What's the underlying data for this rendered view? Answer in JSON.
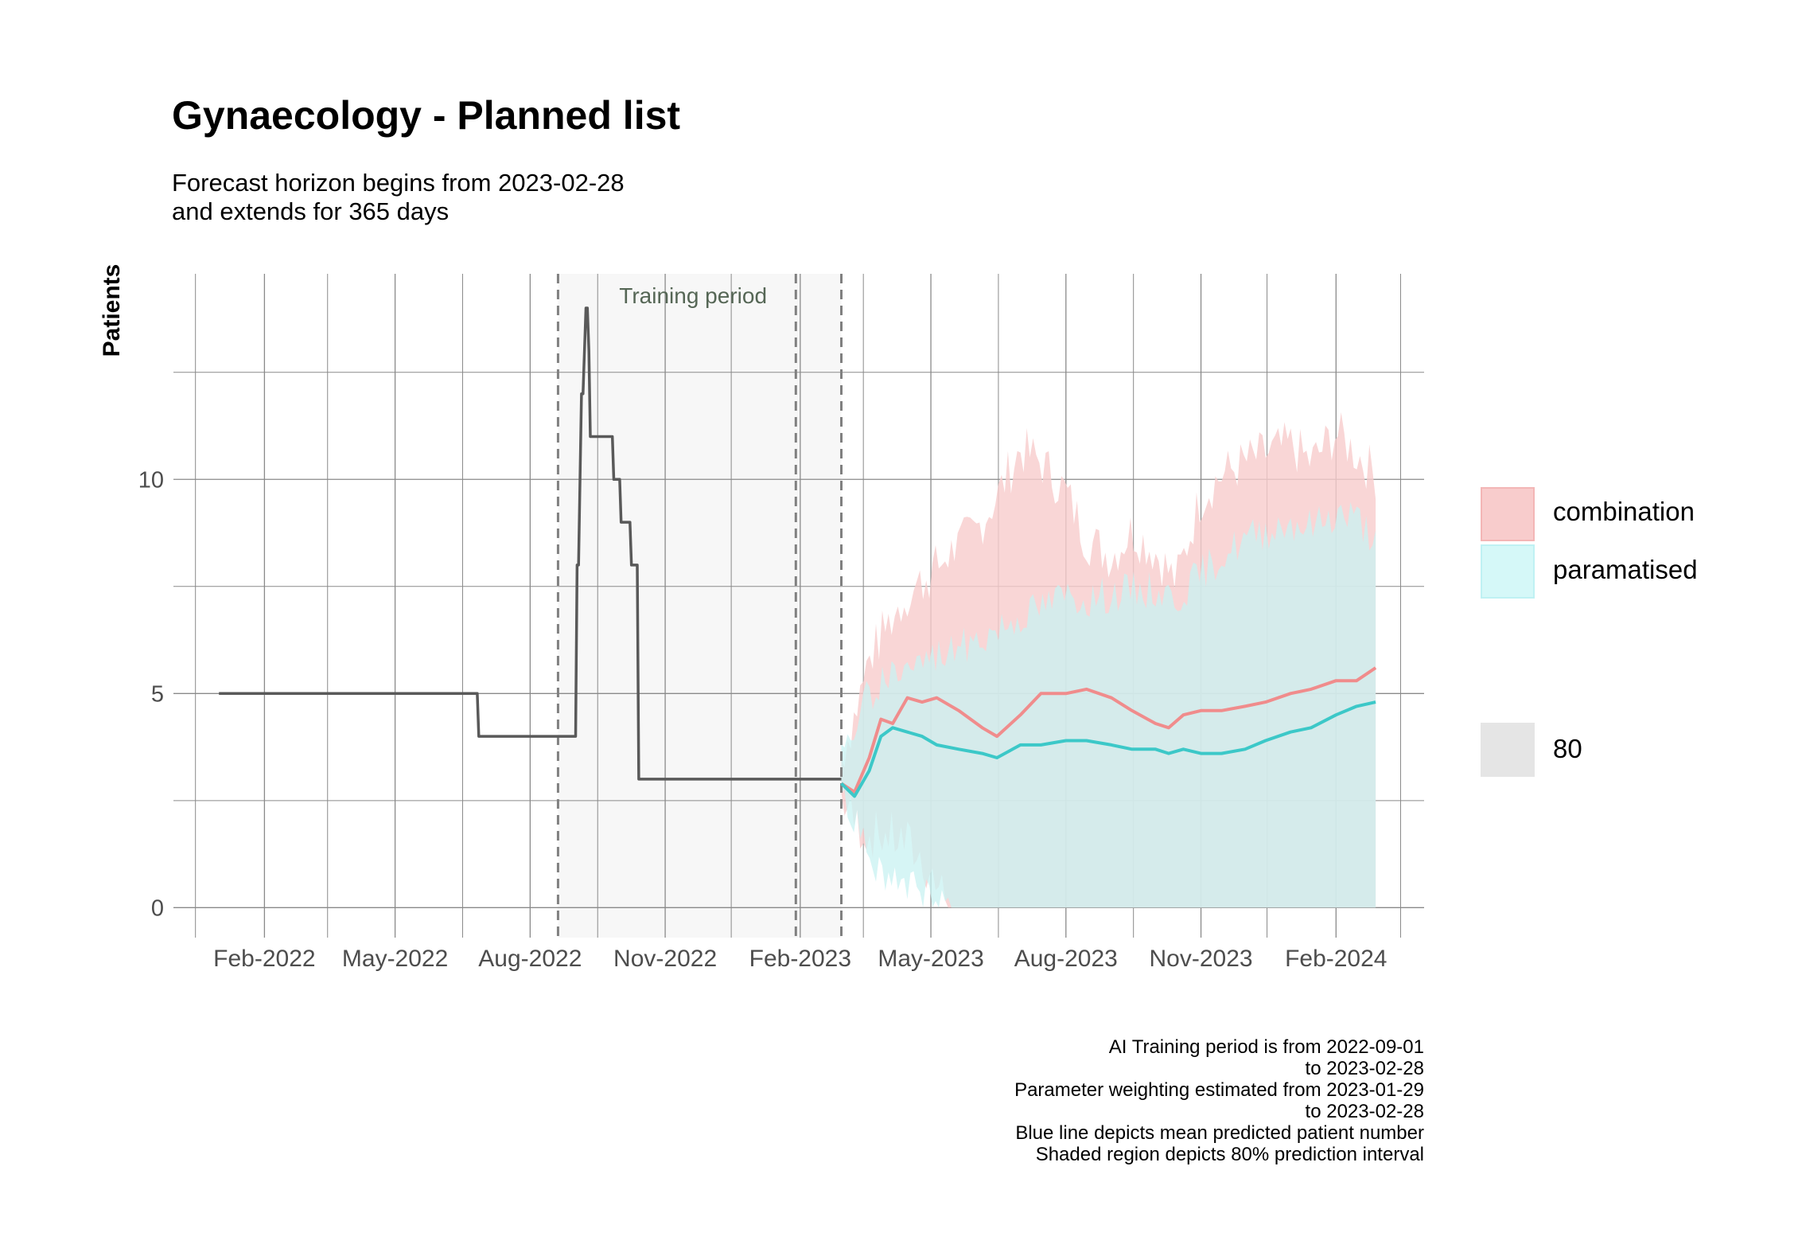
{
  "page": {
    "title": "Gynaecology - Planned list",
    "subtitle_lines": [
      "Forecast horizon begins from 2023-02-28",
      "and extends for 365 days"
    ],
    "caption_lines": [
      "AI Training period is from 2022-09-01",
      "to 2023-02-28",
      "Parameter weighting estimated from 2023-01-29",
      "to 2023-02-28",
      "Blue line depicts mean predicted patient number",
      "Shaded region depicts 80% prediction interval"
    ]
  },
  "chart_data": {
    "type": "line",
    "title": "Gynaecology - Planned list",
    "ylabel": "Patients",
    "xlabel": "",
    "xlim": [
      "2021-12-01",
      "2024-04-01"
    ],
    "ylim": [
      -0.7,
      14.8
    ],
    "y_ticks": [
      0,
      5,
      10
    ],
    "x_ticks": [
      "2022-02-01",
      "2022-05-01",
      "2022-08-01",
      "2022-11-01",
      "2023-02-01",
      "2023-05-01",
      "2023-08-01",
      "2023-11-01",
      "2024-02-01"
    ],
    "x_tick_labels": [
      "Feb-2022",
      "May-2022",
      "Aug-2022",
      "Nov-2022",
      "Feb-2023",
      "May-2023",
      "Aug-2023",
      "Nov-2023",
      "Feb-2024"
    ],
    "grid": true,
    "legend_position": "right",
    "annotation": {
      "text": "Training period",
      "x": "2022-11-20"
    },
    "training_region": {
      "start": "2022-08-20",
      "end": "2023-03-01"
    },
    "vlines": [
      "2022-08-20",
      "2023-01-29",
      "2023-03-01"
    ],
    "colors": {
      "observed": "#595959",
      "combination": "#f08c8c",
      "paramatised": "#3cc8c8",
      "combination_band": "#f8cccc",
      "paramatised_band": "#c8f2f2",
      "training_shade": "#f7f7f7",
      "level_key": "#e5e5e5"
    },
    "observed": {
      "x": [
        "2022-01-01",
        "2022-06-26",
        "2022-06-27",
        "2022-09-01",
        "2022-09-02",
        "2022-09-03",
        "2022-09-05",
        "2022-09-06",
        "2022-09-08",
        "2022-09-09",
        "2022-09-10",
        "2022-09-11",
        "2022-09-13",
        "2022-09-14",
        "2022-09-26",
        "2022-09-27",
        "2022-10-01",
        "2022-10-02",
        "2022-10-08",
        "2022-10-09",
        "2022-10-13",
        "2022-10-14",
        "2023-03-01"
      ],
      "y": [
        5,
        5,
        4,
        4,
        8,
        8,
        12,
        12,
        14,
        14,
        13,
        11,
        11,
        11,
        11,
        10,
        10,
        9,
        9,
        8,
        8,
        3,
        3
      ]
    },
    "series": [
      {
        "name": "combination",
        "x": [
          "2023-03-01",
          "2023-03-10",
          "2023-03-20",
          "2023-03-28",
          "2023-04-05",
          "2023-04-15",
          "2023-04-25",
          "2023-05-05",
          "2023-05-20",
          "2023-06-05",
          "2023-06-15",
          "2023-07-01",
          "2023-07-15",
          "2023-08-01",
          "2023-08-15",
          "2023-09-01",
          "2023-09-15",
          "2023-10-01",
          "2023-10-10",
          "2023-10-20",
          "2023-11-01",
          "2023-11-15",
          "2023-12-01",
          "2023-12-15",
          "2024-01-01",
          "2024-01-15",
          "2024-02-01",
          "2024-02-15",
          "2024-02-28"
        ],
        "y": [
          2.9,
          2.7,
          3.5,
          4.4,
          4.3,
          4.9,
          4.8,
          4.9,
          4.6,
          4.2,
          4.0,
          4.5,
          5.0,
          5.0,
          5.1,
          4.9,
          4.6,
          4.3,
          4.2,
          4.5,
          4.6,
          4.6,
          4.7,
          4.8,
          5.0,
          5.1,
          5.3,
          5.3,
          5.6
        ]
      },
      {
        "name": "paramatised",
        "x": [
          "2023-03-01",
          "2023-03-10",
          "2023-03-20",
          "2023-03-28",
          "2023-04-05",
          "2023-04-15",
          "2023-04-25",
          "2023-05-05",
          "2023-05-20",
          "2023-06-05",
          "2023-06-15",
          "2023-07-01",
          "2023-07-15",
          "2023-08-01",
          "2023-08-15",
          "2023-09-01",
          "2023-09-15",
          "2023-10-01",
          "2023-10-10",
          "2023-10-20",
          "2023-11-01",
          "2023-11-15",
          "2023-12-01",
          "2023-12-15",
          "2024-01-01",
          "2024-01-15",
          "2024-02-01",
          "2024-02-15",
          "2024-02-28"
        ],
        "y": [
          2.9,
          2.6,
          3.2,
          4.0,
          4.2,
          4.1,
          4.0,
          3.8,
          3.7,
          3.6,
          3.5,
          3.8,
          3.8,
          3.9,
          3.9,
          3.8,
          3.7,
          3.7,
          3.6,
          3.7,
          3.6,
          3.6,
          3.7,
          3.9,
          4.1,
          4.2,
          4.5,
          4.7,
          4.8
        ]
      }
    ],
    "bands": [
      {
        "name": "combination",
        "level": "80",
        "x": [
          "2023-03-01",
          "2023-03-10",
          "2023-03-20",
          "2023-04-01",
          "2023-04-15",
          "2023-05-01",
          "2023-05-15",
          "2023-06-01",
          "2023-06-15",
          "2023-07-01",
          "2023-07-15",
          "2023-08-01",
          "2023-08-15",
          "2023-09-01",
          "2023-09-15",
          "2023-10-01",
          "2023-10-15",
          "2023-11-01",
          "2023-11-15",
          "2023-12-01",
          "2023-12-15",
          "2024-01-01",
          "2024-01-15",
          "2024-02-01",
          "2024-02-15",
          "2024-02-28"
        ],
        "lower": [
          2.6,
          2.0,
          1.7,
          1.7,
          1.5,
          0.8,
          0.0,
          0.0,
          0.0,
          0.0,
          0.0,
          0.0,
          0.0,
          0.0,
          0.0,
          0.0,
          0.0,
          0.0,
          0.0,
          0.0,
          0.0,
          0.0,
          0.0,
          0.0,
          0.0,
          0.0
        ],
        "upper": [
          3.5,
          4.5,
          5.8,
          6.6,
          7.3,
          7.8,
          8.3,
          8.8,
          9.6,
          10.7,
          10.4,
          9.7,
          8.6,
          8.2,
          8.8,
          8.3,
          7.6,
          9.6,
          10.1,
          10.4,
          10.6,
          10.8,
          10.4,
          11.1,
          10.6,
          10.1
        ]
      },
      {
        "name": "paramatised",
        "level": "80",
        "x": [
          "2023-03-01",
          "2023-03-10",
          "2023-03-20",
          "2023-04-01",
          "2023-04-15",
          "2023-05-01",
          "2023-05-15",
          "2023-06-01",
          "2023-06-15",
          "2023-07-01",
          "2023-07-15",
          "2023-08-01",
          "2023-08-15",
          "2023-09-01",
          "2023-09-15",
          "2023-10-01",
          "2023-10-15",
          "2023-11-01",
          "2023-11-15",
          "2023-12-01",
          "2023-12-15",
          "2024-01-01",
          "2024-01-15",
          "2024-02-01",
          "2024-02-15",
          "2024-02-28"
        ],
        "lower": [
          2.6,
          2.0,
          1.2,
          0.8,
          0.5,
          0.2,
          0.0,
          0.0,
          0.0,
          0.0,
          0.0,
          0.0,
          0.0,
          0.0,
          0.0,
          0.0,
          0.0,
          0.0,
          0.0,
          0.0,
          0.0,
          0.0,
          0.0,
          0.0,
          0.0,
          0.0
        ],
        "upper": [
          3.4,
          4.2,
          5.0,
          5.4,
          5.6,
          5.8,
          6.0,
          6.2,
          6.5,
          6.8,
          7.0,
          7.3,
          7.2,
          7.3,
          7.4,
          7.4,
          7.2,
          7.8,
          8.2,
          8.6,
          8.8,
          9.0,
          8.9,
          9.2,
          9.1,
          8.6
        ]
      }
    ],
    "legend": {
      "entries": [
        "combination",
        "paramatised"
      ],
      "level_entries": [
        "80"
      ]
    }
  }
}
